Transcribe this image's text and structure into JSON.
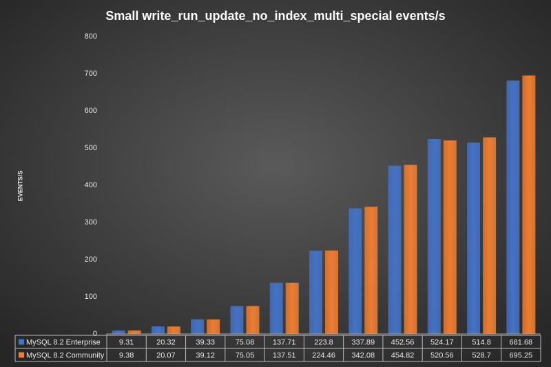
{
  "chart_data": {
    "type": "bar",
    "title": "Small  write_run_update_no_index_multi_special   events/s",
    "y_label": "EVENTS/S",
    "categories": [
      null,
      null,
      null,
      null,
      null,
      null,
      null,
      null,
      null,
      null,
      null
    ],
    "series": [
      {
        "name": "MySQL 8.2 Enterprise",
        "color": "#4472c4",
        "values": [
          9.31,
          20.32,
          39.33,
          75.08,
          137.71,
          223.8,
          337.89,
          452.56,
          524.17,
          514.8,
          681.68
        ]
      },
      {
        "name": "MySQL 8.2 Community",
        "color": "#ed7d31",
        "values": [
          9.38,
          20.07,
          39.12,
          75.05,
          137.51,
          224.46,
          342.08,
          454.82,
          520.56,
          528.7,
          695.25
        ]
      }
    ],
    "ylim": [
      0,
      800
    ],
    "yticks": [
      0,
      100,
      200,
      300,
      400,
      500,
      600,
      700,
      800
    ],
    "grid": false,
    "data_table": true
  }
}
